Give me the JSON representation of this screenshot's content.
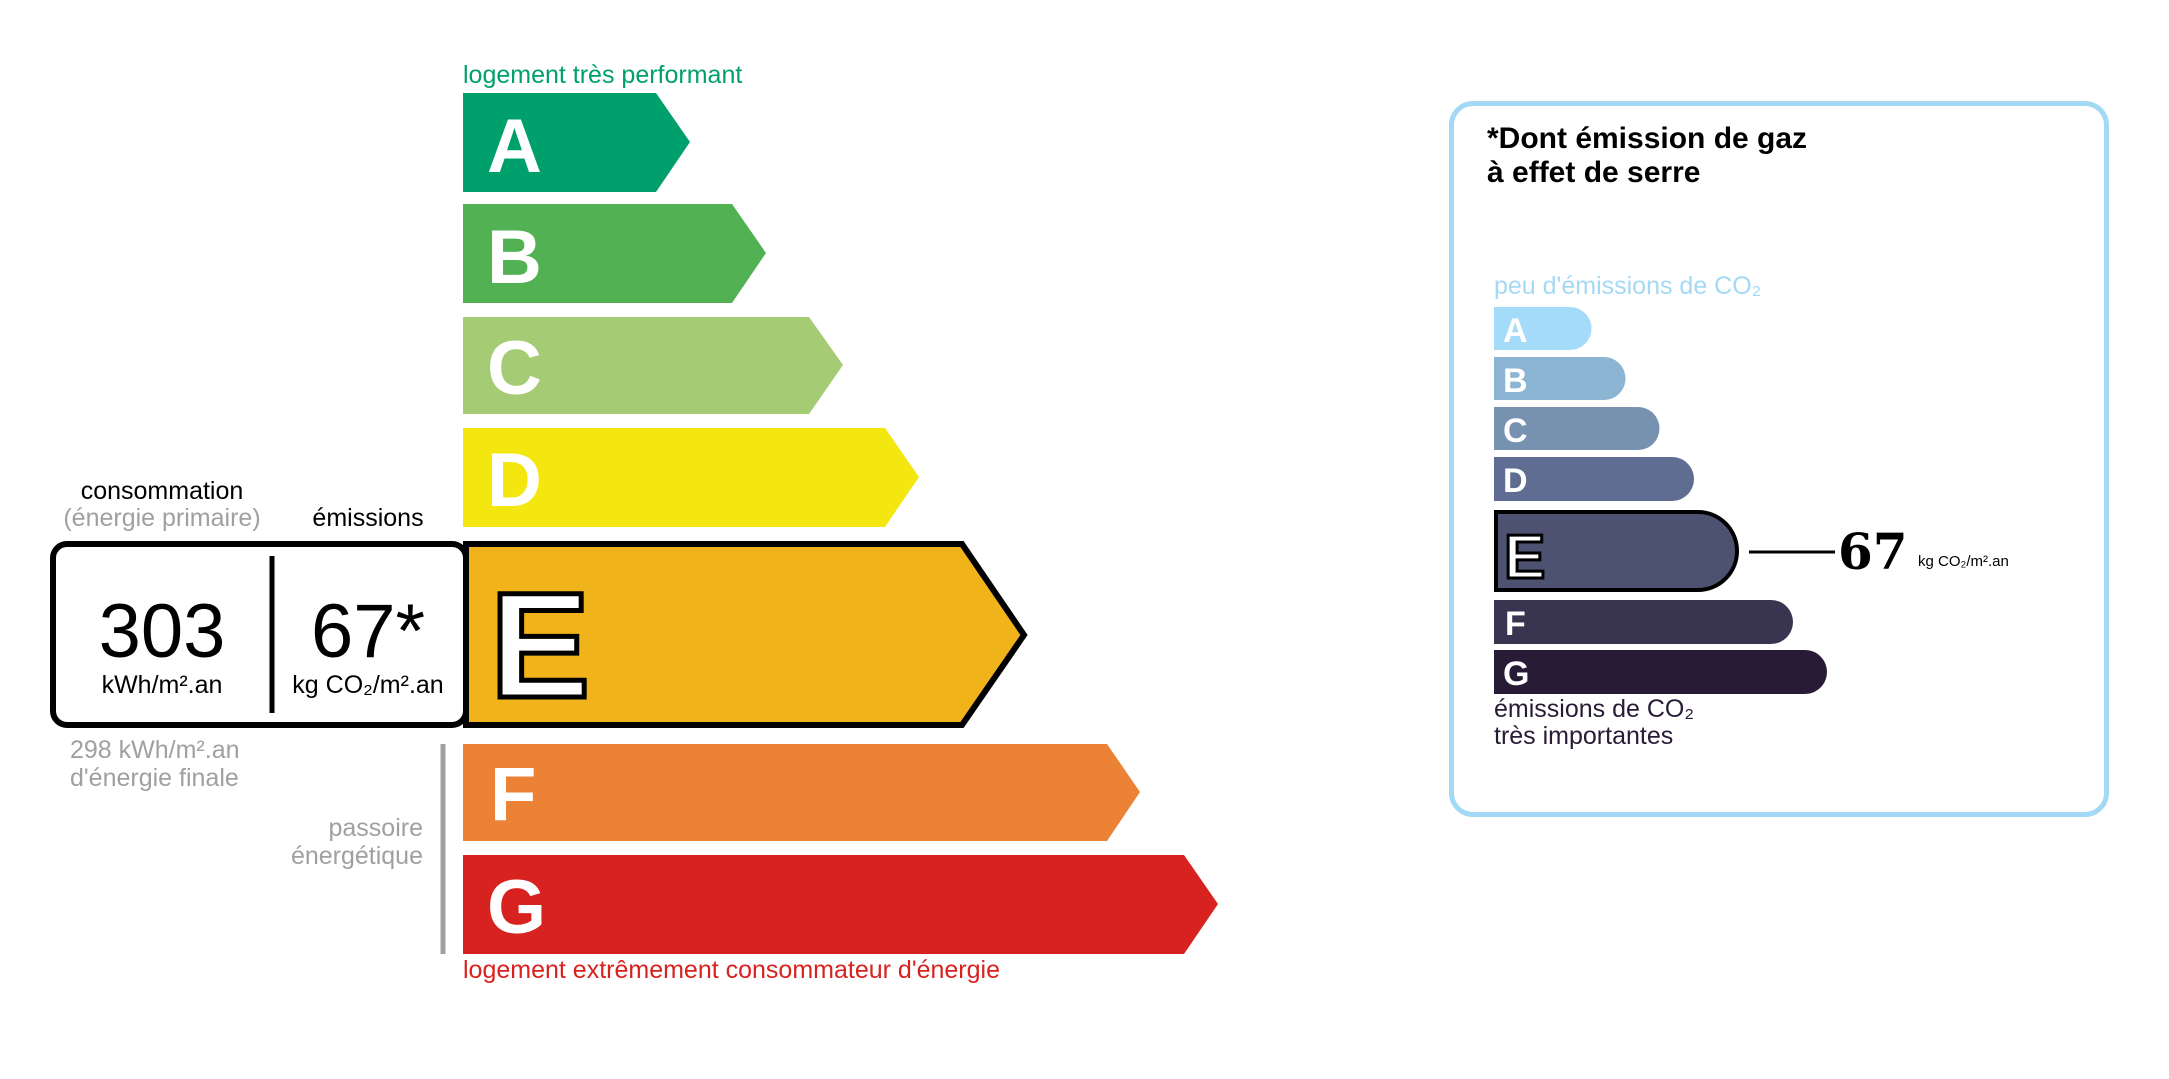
{
  "energy_scale": {
    "top_label": "logement très performant",
    "bottom_label": "logement extrêmement consommateur d'énergie",
    "top_label_color": "#00a06d",
    "bottom_label_color": "#d7221f",
    "classes": [
      {
        "letter": "A",
        "color": "#00a06d"
      },
      {
        "letter": "B",
        "color": "#52b153"
      },
      {
        "letter": "C",
        "color": "#a5cc74"
      },
      {
        "letter": "D",
        "color": "#f4e70f"
      },
      {
        "letter": "E",
        "color": "#f0b41a"
      },
      {
        "letter": "F",
        "color": "#eb8235"
      },
      {
        "letter": "G",
        "color": "#d7221f"
      }
    ],
    "current_class": "E",
    "consumption_label": "consommation",
    "consumption_sublabel": "(énergie primaire)",
    "emissions_label": "émissions",
    "consumption_value": "303",
    "consumption_unit": "kWh/m².an",
    "emissions_value": "67*",
    "emissions_unit": "kg CO₂/m².an",
    "final_energy_line1": "298 kWh/m².an",
    "final_energy_line2": "d'énergie finale",
    "passoire_line1": "passoire",
    "passoire_line2": "énergétique"
  },
  "ghg_panel": {
    "title_line1": "*Dont émission de gaz",
    "title_line2": "à effet de serre",
    "top_label": "peu d'émissions de CO₂",
    "bottom_label_line1": "émissions de CO₂",
    "bottom_label_line2": "très importantes",
    "border_color": "#a4d9f5",
    "classes": [
      {
        "letter": "A",
        "color": "#a4dbf8"
      },
      {
        "letter": "B",
        "color": "#8cb4d3"
      },
      {
        "letter": "C",
        "color": "#7792b1"
      },
      {
        "letter": "D",
        "color": "#5f6d92"
      },
      {
        "letter": "E",
        "color": "#4d5271"
      },
      {
        "letter": "F",
        "color": "#393551"
      },
      {
        "letter": "G",
        "color": "#281b35"
      }
    ],
    "current_class": "E",
    "value": "67",
    "unit": "kg CO₂/m².an"
  }
}
